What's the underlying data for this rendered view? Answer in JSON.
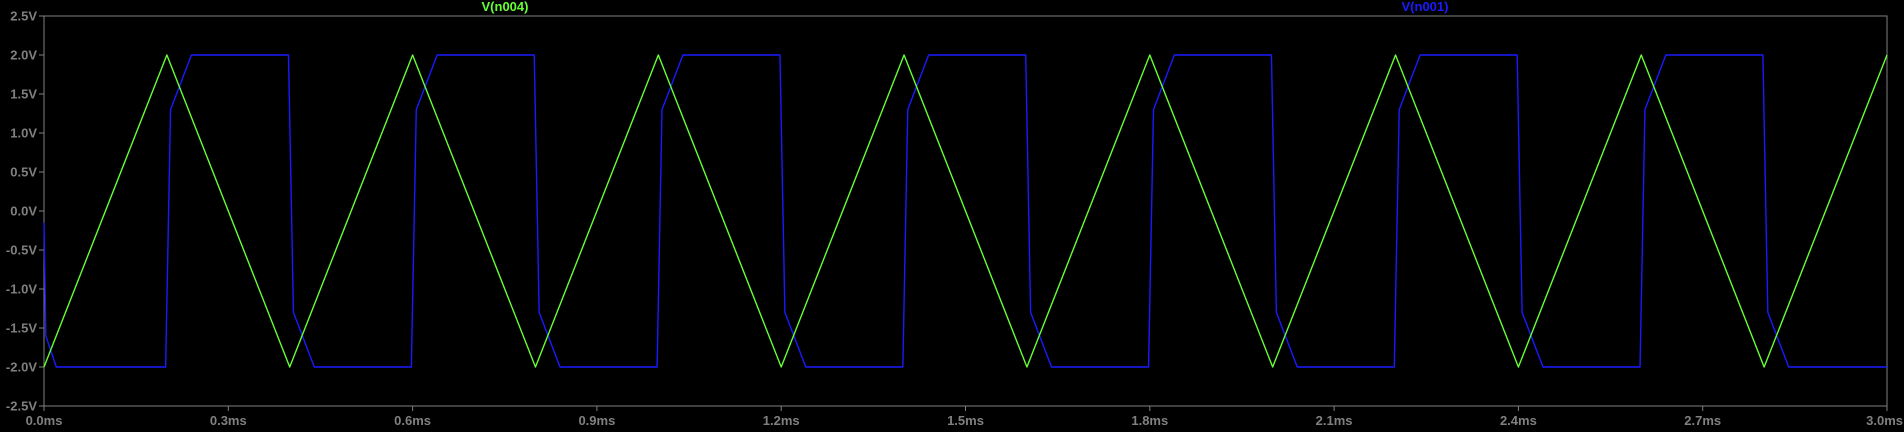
{
  "chart_data": {
    "type": "line",
    "title": "",
    "xlabel": "",
    "ylabel": "",
    "xlim": [
      0,
      3
    ],
    "ylim": [
      -2.5,
      2.5
    ],
    "x_unit": "ms",
    "y_unit": "V",
    "x_ticks": [
      "0.0ms",
      "0.3ms",
      "0.6ms",
      "0.9ms",
      "1.2ms",
      "1.5ms",
      "1.8ms",
      "2.1ms",
      "2.4ms",
      "2.7ms",
      "3.0ms"
    ],
    "x_tick_values": [
      0,
      0.3,
      0.6,
      0.9,
      1.2,
      1.5,
      1.8,
      2.1,
      2.4,
      2.7,
      3.0
    ],
    "y_ticks": [
      "2.5V",
      "2.0V",
      "1.5V",
      "1.0V",
      "0.5V",
      "0.0V",
      "-0.5V",
      "-1.0V",
      "-1.5V",
      "-2.0V",
      "-2.5V"
    ],
    "y_tick_values": [
      2.5,
      2.0,
      1.5,
      1.0,
      0.5,
      0.0,
      -0.5,
      -1.0,
      -1.5,
      -2.0,
      -2.5
    ],
    "grid": false,
    "legend_position": "top",
    "colors": {
      "background": "#000000",
      "axis": "#808080",
      "tick_text": "#808080",
      "trace_green": "#66ff33",
      "trace_blue": "#1a1aff"
    },
    "series": [
      {
        "name": "V(n004)",
        "color": "#66ff33",
        "shape": "triangle",
        "x": [
          0,
          0.2,
          0.4,
          0.6,
          0.8,
          1.0,
          1.2,
          1.4,
          1.6,
          1.8,
          2.0,
          2.2,
          2.4,
          2.6,
          2.8,
          3.0
        ],
        "y": [
          -2.0,
          2.0,
          -2.0,
          2.0,
          -2.0,
          2.0,
          -2.0,
          2.0,
          -2.0,
          2.0,
          -2.0,
          2.0,
          -2.0,
          2.0,
          -2.0,
          2.0
        ]
      },
      {
        "name": "V(n001)",
        "color": "#1a1aff",
        "shape": "square",
        "x": [
          0,
          0.003,
          0.02,
          0.198,
          0.206,
          0.24,
          0.398,
          0.406,
          0.44,
          0.598,
          0.606,
          0.64,
          0.798,
          0.806,
          0.84,
          0.998,
          1.006,
          1.04,
          1.198,
          1.206,
          1.24,
          1.398,
          1.406,
          1.44,
          1.598,
          1.606,
          1.64,
          1.798,
          1.806,
          1.84,
          1.998,
          2.006,
          2.04,
          2.198,
          2.206,
          2.24,
          2.398,
          2.406,
          2.44,
          2.598,
          2.606,
          2.64,
          2.798,
          2.806,
          2.84,
          3.0
        ],
        "y": [
          -0.15,
          -1.6,
          -2.0,
          -2.0,
          1.3,
          2.0,
          2.0,
          -1.3,
          -2.0,
          -2.0,
          1.3,
          2.0,
          2.0,
          -1.3,
          -2.0,
          -2.0,
          1.3,
          2.0,
          2.0,
          -1.3,
          -2.0,
          -2.0,
          1.3,
          2.0,
          2.0,
          -1.3,
          -2.0,
          -2.0,
          1.3,
          2.0,
          2.0,
          -1.3,
          -2.0,
          -2.0,
          1.3,
          2.0,
          2.0,
          -1.3,
          -2.0,
          -2.0,
          1.3,
          2.0,
          2.0,
          -1.3,
          -2.0,
          -2.0
        ]
      }
    ]
  }
}
